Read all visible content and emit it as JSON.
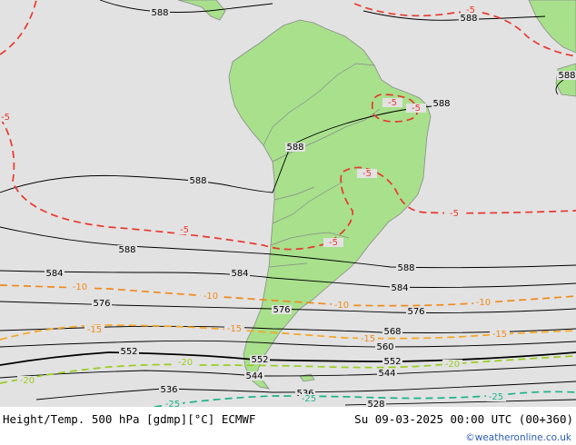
{
  "footer": {
    "title": "Height/Temp. 500 hPa [gdmp][°C] ECMWF",
    "valid_time": "Su 09-03-2025 00:00 UTC (00+360)",
    "credit": "©weatheronline.co.uk"
  },
  "colors": {
    "ocean": "#e2e2e2",
    "land": "#a8e08c",
    "height_contour": "#000000",
    "temp_minus5": "#e8392f",
    "temp_minus10": "#f08a1c",
    "temp_minus15": "#f5a623",
    "temp_minus20": "#9acd1f",
    "temp_minus25": "#1cb38a",
    "credit": "#2a5db0"
  },
  "height_labels": [
    {
      "text": "588"
    },
    {
      "text": "588"
    },
    {
      "text": "588"
    },
    {
      "text": "588"
    },
    {
      "text": "588"
    },
    {
      "text": "588"
    },
    {
      "text": "588"
    },
    {
      "text": "588"
    },
    {
      "text": "584"
    },
    {
      "text": "584"
    },
    {
      "text": "584"
    },
    {
      "text": "576"
    },
    {
      "text": "576"
    },
    {
      "text": "576"
    },
    {
      "text": "568"
    },
    {
      "text": "560"
    },
    {
      "text": "552"
    },
    {
      "text": "552"
    },
    {
      "text": "552"
    },
    {
      "text": "544"
    },
    {
      "text": "544"
    },
    {
      "text": "536"
    },
    {
      "text": "536"
    },
    {
      "text": "528"
    }
  ],
  "temp_labels": [
    {
      "text": "-5"
    },
    {
      "text": "-5"
    },
    {
      "text": "-5"
    },
    {
      "text": "-5"
    },
    {
      "text": "-5"
    },
    {
      "text": "-5"
    },
    {
      "text": "-5"
    },
    {
      "text": "-5"
    },
    {
      "text": "-10"
    },
    {
      "text": "-10"
    },
    {
      "text": "-10"
    },
    {
      "text": "-10"
    },
    {
      "text": "-15"
    },
    {
      "text": "-15"
    },
    {
      "text": "-15"
    },
    {
      "text": "-15"
    },
    {
      "text": "-20"
    },
    {
      "text": "-20"
    },
    {
      "text": "-20"
    },
    {
      "text": "-25"
    },
    {
      "text": "-25"
    },
    {
      "text": "-25"
    }
  ]
}
